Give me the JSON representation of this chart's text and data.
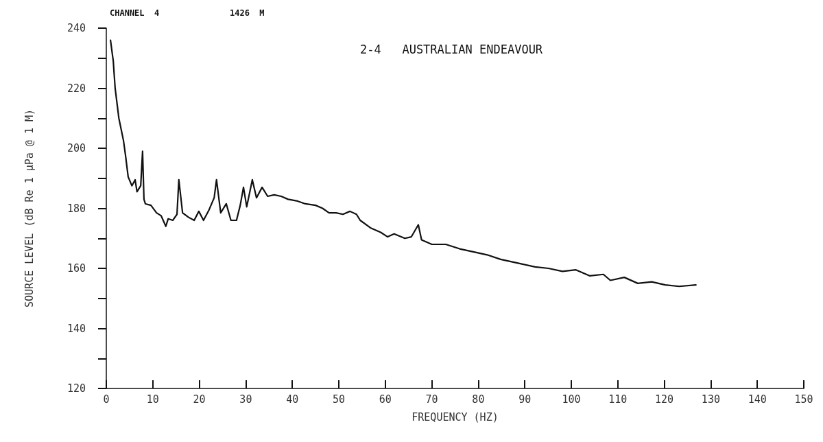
{
  "chart_data": {
    "type": "line",
    "title": "2-4   AUSTRALIAN ENDEAVOUR",
    "xlabel": "FREQUENCY (HZ)",
    "ylabel": "SOURCE LEVEL (dB Re 1 µPa @ 1 M)",
    "annotations": [
      "CHANNEL  4",
      "1426  M"
    ],
    "series": [
      {
        "color": "#111111",
        "x": [
          0.9,
          1.5,
          1.9,
          2.7,
          3.7,
          4.1,
          4.7,
          5.5,
          6.2,
          6.6,
          7.4,
          7.8,
          8.1,
          8.4,
          9.6,
          10.8,
          11.8,
          12.8,
          13.3,
          14.3,
          15.2,
          15.6,
          16.4,
          17.7,
          18.9,
          19.9,
          20.9,
          22.1,
          23.2,
          23.7,
          24.6,
          25.8,
          26.8,
          28,
          28.8,
          29.5,
          30.2,
          31.4,
          32.3,
          33.5,
          34.7,
          36.1,
          37.6,
          39.1,
          40.9,
          42.8,
          45,
          46.5,
          47.9,
          49.4,
          50.9,
          52.4,
          53.8,
          54.6,
          56.8,
          59,
          60.5,
          61.9,
          64.2,
          65.6,
          67.1,
          67.8,
          70,
          73,
          76,
          78.9,
          81.9,
          84.8,
          89.2,
          92.2,
          95.1,
          98.1,
          101,
          104,
          106.9,
          108.4,
          111.4,
          114.3,
          117.3,
          120.2,
          123.2,
          126.8
        ],
        "values": [
          236,
          229,
          220,
          210,
          202.5,
          198,
          190.5,
          187.5,
          189.5,
          185.5,
          187.5,
          199,
          183,
          181.5,
          181,
          178.5,
          177.5,
          174,
          176.5,
          176,
          178,
          189.5,
          178.5,
          177,
          176,
          179,
          176,
          179.5,
          183.5,
          189.5,
          178.5,
          181.5,
          176,
          176,
          181,
          187,
          180.5,
          189.5,
          183.5,
          187,
          184,
          184.5,
          184,
          183,
          182.5,
          181.5,
          181,
          180,
          178.5,
          178.5,
          178,
          179,
          178,
          176,
          173.5,
          172,
          170.5,
          171.5,
          170,
          170.5,
          174.5,
          169.5,
          168,
          168,
          166.5,
          165.5,
          164.5,
          163,
          161.5,
          160.5,
          160,
          159,
          159.5,
          157.5,
          158,
          156,
          157,
          155,
          155.5,
          154.5,
          154,
          154.5
        ]
      }
    ],
    "xlim": [
      0,
      150
    ],
    "xticks": [
      0,
      10,
      20,
      30,
      40,
      50,
      60,
      70,
      80,
      90,
      100,
      110,
      120,
      130,
      140,
      150
    ],
    "ylim": [
      120,
      240
    ],
    "yticks": [
      120,
      {
        "value": 130,
        "label": null
      },
      140,
      {
        "value": 150,
        "label": null
      },
      160,
      {
        "value": 170,
        "label": null
      },
      180,
      {
        "value": 190,
        "label": null
      },
      200,
      {
        "value": 210,
        "label": null
      },
      220,
      {
        "value": 230,
        "label": null
      },
      240
    ],
    "grid": false,
    "marker": "none",
    "line_style": "solid"
  }
}
